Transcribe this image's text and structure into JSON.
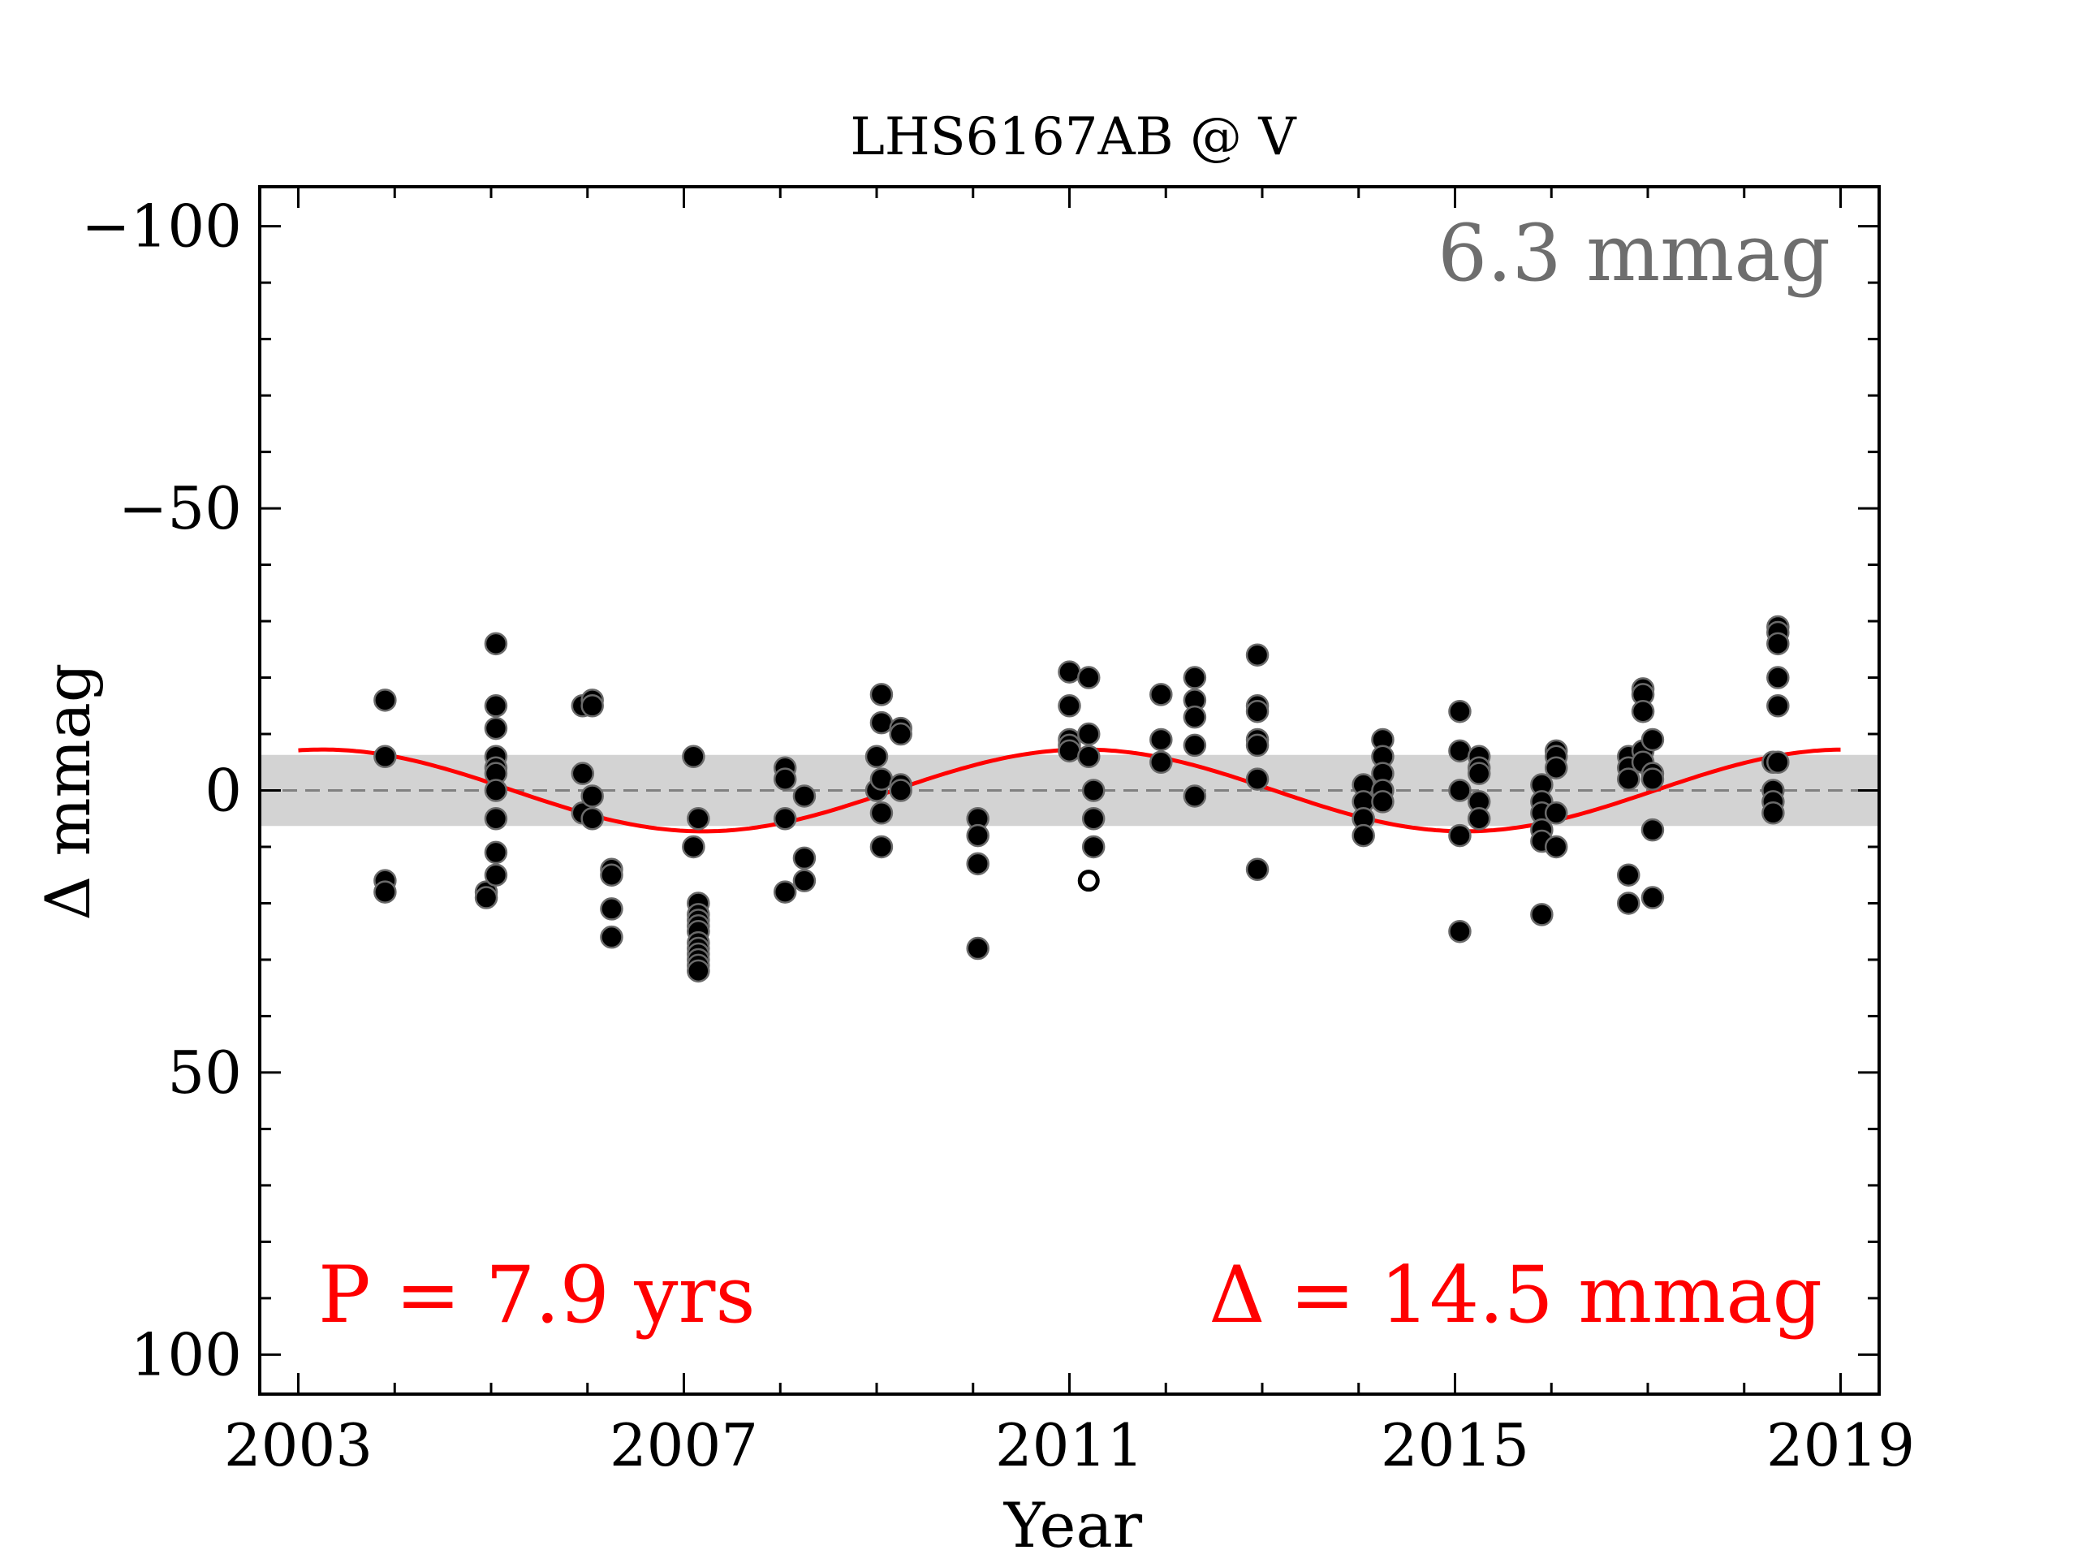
{
  "chart_data": {
    "type": "scatter",
    "title": "LHS6167AB @ V",
    "xlabel": "Year",
    "ylabel": "Δ  mmag",
    "xlim": [
      2002.6,
      2019.4
    ],
    "ylim": [
      -107,
      107
    ],
    "y_inverted": true,
    "grid": false,
    "xticks": [
      2003,
      2007,
      2011,
      2015,
      2019
    ],
    "xtick_labels": [
      "2003",
      "2007",
      "2011",
      "2015",
      "2019"
    ],
    "yticks": [
      -100,
      -50,
      0,
      50,
      100
    ],
    "ytick_labels": [
      "−100",
      "−50",
      "0",
      "50",
      "100"
    ],
    "band": {
      "y1": -6.3,
      "y2": 6.3,
      "color": "#d3d3d3"
    },
    "zero_line": {
      "y": 0,
      "color": "#808080",
      "style": "dashed"
    },
    "fit": {
      "name": "sinusoid fit",
      "color": "#ff0000",
      "x_start": 2003.0,
      "x_end": 2019.0,
      "period_yrs": 7.9,
      "amplitude_mmag": 7.25,
      "offset_mmag": 0,
      "phase_peak_year": 2011.15
    },
    "annotations": {
      "stddev": {
        "text": "6.3 mmag",
        "color": "#6e6e6e"
      },
      "period": {
        "text": "P = 7.9 yrs",
        "color": "#ff0000"
      },
      "amplitude": {
        "text": "Δ = 14.5 mmag",
        "color": "#ff0000"
      }
    },
    "series": [
      {
        "marker": "filled-circle",
        "color": "#000000",
        "points": [
          [
            2003.9,
            -16
          ],
          [
            2003.9,
            -6
          ],
          [
            2003.9,
            16
          ],
          [
            2003.9,
            18
          ],
          [
            2004.95,
            18
          ],
          [
            2004.95,
            19
          ],
          [
            2005.05,
            -26
          ],
          [
            2005.05,
            -15
          ],
          [
            2005.05,
            -11
          ],
          [
            2005.05,
            -6
          ],
          [
            2005.05,
            -4
          ],
          [
            2005.05,
            -3
          ],
          [
            2005.05,
            0
          ],
          [
            2005.05,
            5
          ],
          [
            2005.05,
            11
          ],
          [
            2005.05,
            15
          ],
          [
            2005.95,
            -15
          ],
          [
            2005.95,
            -3
          ],
          [
            2005.95,
            4
          ],
          [
            2006.05,
            -16
          ],
          [
            2006.05,
            -15
          ],
          [
            2006.05,
            1
          ],
          [
            2006.05,
            5
          ],
          [
            2006.25,
            14
          ],
          [
            2006.25,
            15
          ],
          [
            2006.25,
            21
          ],
          [
            2006.25,
            26
          ],
          [
            2007.1,
            -6
          ],
          [
            2007.1,
            10
          ],
          [
            2007.15,
            5
          ],
          [
            2007.15,
            20
          ],
          [
            2007.15,
            22
          ],
          [
            2007.15,
            23
          ],
          [
            2007.15,
            24
          ],
          [
            2007.15,
            25
          ],
          [
            2007.15,
            27
          ],
          [
            2007.15,
            28
          ],
          [
            2007.15,
            29
          ],
          [
            2007.15,
            30
          ],
          [
            2007.15,
            31
          ],
          [
            2007.15,
            32
          ],
          [
            2008.05,
            -4
          ],
          [
            2008.05,
            -2
          ],
          [
            2008.05,
            5
          ],
          [
            2008.05,
            18
          ],
          [
            2008.25,
            1
          ],
          [
            2008.25,
            12
          ],
          [
            2008.25,
            16
          ],
          [
            2009.0,
            -6
          ],
          [
            2009.0,
            0
          ],
          [
            2009.05,
            -17
          ],
          [
            2009.05,
            -12
          ],
          [
            2009.05,
            -2
          ],
          [
            2009.05,
            4
          ],
          [
            2009.05,
            10
          ],
          [
            2009.25,
            -11
          ],
          [
            2009.25,
            -10
          ],
          [
            2009.25,
            -1
          ],
          [
            2009.25,
            0
          ],
          [
            2010.05,
            5
          ],
          [
            2010.05,
            8
          ],
          [
            2010.05,
            13
          ],
          [
            2010.05,
            28
          ],
          [
            2011.0,
            -21
          ],
          [
            2011.0,
            -15
          ],
          [
            2011.0,
            -9
          ],
          [
            2011.0,
            -8
          ],
          [
            2011.0,
            -7
          ],
          [
            2011.2,
            -20
          ],
          [
            2011.2,
            -10
          ],
          [
            2011.2,
            -6
          ],
          [
            2011.25,
            0
          ],
          [
            2011.25,
            5
          ],
          [
            2011.25,
            10
          ],
          [
            2011.95,
            -17
          ],
          [
            2011.95,
            -9
          ],
          [
            2011.95,
            -5
          ],
          [
            2012.3,
            -20
          ],
          [
            2012.3,
            -16
          ],
          [
            2012.3,
            -13
          ],
          [
            2012.3,
            -8
          ],
          [
            2012.3,
            1
          ],
          [
            2012.95,
            -24
          ],
          [
            2012.95,
            -15
          ],
          [
            2012.95,
            -14
          ],
          [
            2012.95,
            -9
          ],
          [
            2012.95,
            -8
          ],
          [
            2012.95,
            -2
          ],
          [
            2012.95,
            14
          ],
          [
            2014.05,
            -1
          ],
          [
            2014.05,
            2
          ],
          [
            2014.05,
            5
          ],
          [
            2014.05,
            8
          ],
          [
            2014.25,
            -9
          ],
          [
            2014.25,
            -6
          ],
          [
            2014.25,
            -3
          ],
          [
            2014.25,
            0
          ],
          [
            2014.25,
            2
          ],
          [
            2015.05,
            -14
          ],
          [
            2015.05,
            -7
          ],
          [
            2015.05,
            0
          ],
          [
            2015.05,
            8
          ],
          [
            2015.05,
            25
          ],
          [
            2015.25,
            -6
          ],
          [
            2015.25,
            -4
          ],
          [
            2015.25,
            -3
          ],
          [
            2015.25,
            2
          ],
          [
            2015.25,
            5
          ],
          [
            2015.9,
            -1
          ],
          [
            2015.9,
            2
          ],
          [
            2015.9,
            4
          ],
          [
            2015.9,
            7
          ],
          [
            2015.9,
            9
          ],
          [
            2015.9,
            22
          ],
          [
            2016.05,
            -7
          ],
          [
            2016.05,
            -6
          ],
          [
            2016.05,
            -4
          ],
          [
            2016.05,
            4
          ],
          [
            2016.05,
            10
          ],
          [
            2016.8,
            -6
          ],
          [
            2016.8,
            -4
          ],
          [
            2016.8,
            -2
          ],
          [
            2016.8,
            15
          ],
          [
            2016.8,
            20
          ],
          [
            2016.95,
            -18
          ],
          [
            2016.95,
            -17
          ],
          [
            2016.95,
            -14
          ],
          [
            2016.95,
            -7
          ],
          [
            2016.95,
            -5
          ],
          [
            2017.05,
            -9
          ],
          [
            2017.05,
            -3
          ],
          [
            2017.05,
            -2
          ],
          [
            2017.05,
            7
          ],
          [
            2017.05,
            19
          ],
          [
            2018.3,
            -5
          ],
          [
            2018.3,
            0
          ],
          [
            2018.3,
            2
          ],
          [
            2018.3,
            4
          ],
          [
            2018.35,
            -29
          ],
          [
            2018.35,
            -28
          ],
          [
            2018.35,
            -26
          ],
          [
            2018.35,
            -20
          ],
          [
            2018.35,
            -15
          ],
          [
            2018.35,
            -5
          ]
        ]
      },
      {
        "marker": "open-circle",
        "color": "#000000",
        "points": [
          [
            2011.2,
            16
          ]
        ]
      }
    ]
  }
}
